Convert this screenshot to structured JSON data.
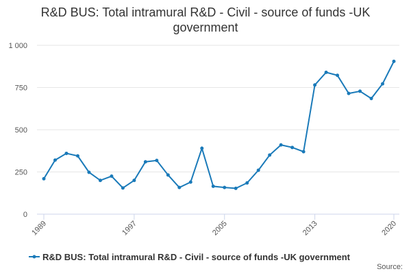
{
  "chart_data": {
    "type": "line",
    "title": "R&D BUS: Total intramural R&D - Civil - source of funds -UK government",
    "x": [
      1989,
      1990,
      1991,
      1992,
      1993,
      1994,
      1995,
      1996,
      1997,
      1998,
      1999,
      2000,
      2001,
      2002,
      2003,
      2004,
      2005,
      2006,
      2007,
      2008,
      2009,
      2010,
      2011,
      2012,
      2013,
      2014,
      2015,
      2016,
      2017,
      2018,
      2019,
      2020
    ],
    "series": [
      {
        "name": "R&D BUS: Total intramural R&D - Civil - source of funds -UK government",
        "color": "#1a7ab9",
        "values": [
          210,
          320,
          360,
          345,
          248,
          200,
          225,
          155,
          200,
          310,
          318,
          232,
          158,
          190,
          390,
          165,
          158,
          153,
          185,
          260,
          350,
          410,
          395,
          370,
          765,
          840,
          822,
          715,
          728,
          685,
          772,
          905
        ]
      }
    ],
    "xlim": [
      1989,
      2020
    ],
    "xticks": [
      1989,
      1997,
      2005,
      2013,
      2020
    ],
    "ylim": [
      0,
      1000
    ],
    "yticks": [
      0,
      250,
      500,
      750,
      {
        "value": 1000,
        "label": "1 000"
      }
    ],
    "grid": true,
    "legend": "bottom",
    "source_label": "Source:"
  }
}
